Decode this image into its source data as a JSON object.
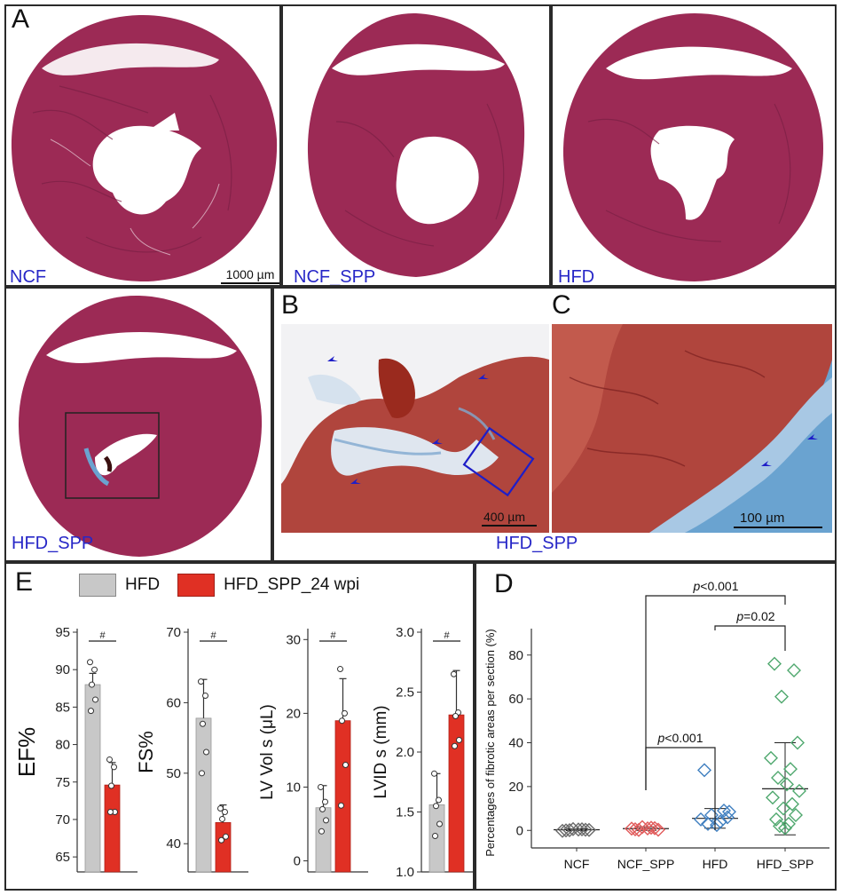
{
  "figure": {
    "panel_labels": {
      "a": "A",
      "b": "B",
      "c": "C",
      "d": "D",
      "e": "E"
    },
    "colors": {
      "tissue": "#9c2a55",
      "tissue_dark": "#7a1f44",
      "muscle": "#b0453d",
      "fibrosis_blue": "#6aa3d0",
      "caption_blue": "#2727c7",
      "frame_blue": "#1e1ec8",
      "bar_hfd": "#c8c8c8",
      "bar_spp": "#e03024",
      "d_ncf": "#6a6a6a",
      "d_ncf_spp": "#e15a5a",
      "d_hfd": "#3f7fc0",
      "d_hfd_spp": "#4fa86e"
    }
  },
  "histology": {
    "captions": {
      "ncf": "NCF",
      "ncf_spp": "NCF_SPP",
      "hfd": "HFD",
      "hfd_spp": "HFD_SPP",
      "hfd_spp_bottom": "HFD_SPP"
    },
    "scale_bars": {
      "a": "1000 µm",
      "b": "400 µm",
      "c": "100 µm"
    },
    "arrowhead_icon": "arrowhead-icon"
  },
  "panel_e": {
    "legend": [
      "HFD",
      "HFD_SPP_24 wpi"
    ],
    "sig_mark": "#",
    "charts": [
      {
        "type": "bar",
        "ylabel": "EF%",
        "ylim": [
          63,
          95
        ],
        "yticks": [
          "65",
          "70",
          "75",
          "80",
          "85",
          "90",
          "95"
        ],
        "yticks_values": [
          65,
          70,
          75,
          80,
          85,
          90,
          95
        ],
        "series": [
          {
            "name": "HFD",
            "value": 88,
            "err": 1.5,
            "points": [
              91,
              90,
              88,
              86,
              84.5
            ]
          },
          {
            "name": "HFD_SPP_24 wpi",
            "value": 74.6,
            "err": 3,
            "points": [
              78,
              77,
              74.5,
              71,
              71
            ]
          }
        ]
      },
      {
        "type": "bar",
        "ylabel": "FS%",
        "ylim": [
          36,
          70
        ],
        "yticks": [
          "40",
          "50",
          "60",
          "70"
        ],
        "yticks_values": [
          40,
          50,
          60,
          70
        ],
        "series": [
          {
            "name": "HFD",
            "value": 57.8,
            "err": 5.5,
            "points": [
              63,
              61,
              57,
              53,
              50
            ]
          },
          {
            "name": "HFD_SPP_24 wpi",
            "value": 43,
            "err": 2.5,
            "points": [
              45,
              44.5,
              43.5,
              41,
              40.5
            ]
          }
        ]
      },
      {
        "type": "bar",
        "ylabel": "LV Vol s (μL)",
        "ylim": [
          -1.5,
          31
        ],
        "yticks": [
          "0",
          "10",
          "20",
          "30"
        ],
        "yticks_values": [
          0,
          10,
          20,
          30
        ],
        "series": [
          {
            "name": "HFD",
            "value": 7.2,
            "err": 3,
            "points": [
              10,
              8,
              7,
              5.5,
              4
            ]
          },
          {
            "name": "HFD_SPP_24 wpi",
            "value": 19,
            "err": 5.7,
            "points": [
              26,
              20,
              19,
              13,
              7.5
            ]
          }
        ]
      },
      {
        "type": "bar",
        "ylabel": "LVID s (mm)",
        "ylim": [
          1,
          3
        ],
        "yticks": [
          "1.0",
          "1.5",
          "2.0",
          "2.5",
          "3.0"
        ],
        "yticks_values": [
          1,
          1.5,
          2,
          2.5,
          3
        ],
        "series": [
          {
            "name": "HFD",
            "value": 1.56,
            "err": 0.26,
            "points": [
              1.82,
              1.6,
              1.55,
              1.4,
              1.3
            ]
          },
          {
            "name": "HFD_SPP_24 wpi",
            "value": 2.31,
            "err": 0.37,
            "points": [
              2.65,
              2.33,
              2.3,
              2.1,
              2.05
            ]
          }
        ]
      }
    ]
  },
  "chart_data": {
    "type": "scatter",
    "ylabel": "Percentages of fibrotic areas per section (%)",
    "ylim": [
      -8,
      88
    ],
    "yticks": [
      "0",
      "20",
      "40",
      "60",
      "80"
    ],
    "yticks_values": [
      0,
      20,
      40,
      60,
      80
    ],
    "categories": [
      "NCF",
      "NCF_SPP",
      "HFD",
      "HFD_SPP"
    ],
    "series": [
      {
        "name": "NCF",
        "mean": 0.3,
        "sd": 0.4,
        "points": [
          0,
          0.3,
          0.6,
          0.2,
          -0.2,
          0.5,
          0.1,
          0.4
        ]
      },
      {
        "name": "NCF_SPP",
        "mean": 0.8,
        "sd": 0.8,
        "points": [
          0.5,
          1.0,
          1.5,
          0.3,
          0.8,
          1.2,
          0.2,
          0.9
        ]
      },
      {
        "name": "HFD",
        "mean": 5.5,
        "sd": 4.5,
        "points": [
          27.5,
          9,
          7,
          6,
          5,
          4,
          3,
          2.5,
          8.5
        ]
      },
      {
        "name": "HFD_SPP",
        "mean": 19,
        "sd": 21,
        "points": [
          76,
          73,
          61,
          40,
          33,
          28,
          24,
          21,
          18,
          15,
          12,
          10,
          7,
          5,
          3,
          2,
          1
        ]
      }
    ],
    "significance": [
      {
        "label": "p<0.001",
        "italic": "p",
        "rest": "<0.001",
        "from": "NCF_SPP",
        "to": "HFD"
      },
      {
        "label": "p=0.02",
        "italic": "p",
        "rest": "=0.02",
        "from": "HFD",
        "to": "HFD_SPP"
      },
      {
        "label": "p<0.001",
        "italic": "p",
        "rest": "<0.001",
        "from": "NCF_SPP",
        "to": "HFD_SPP"
      }
    ]
  }
}
